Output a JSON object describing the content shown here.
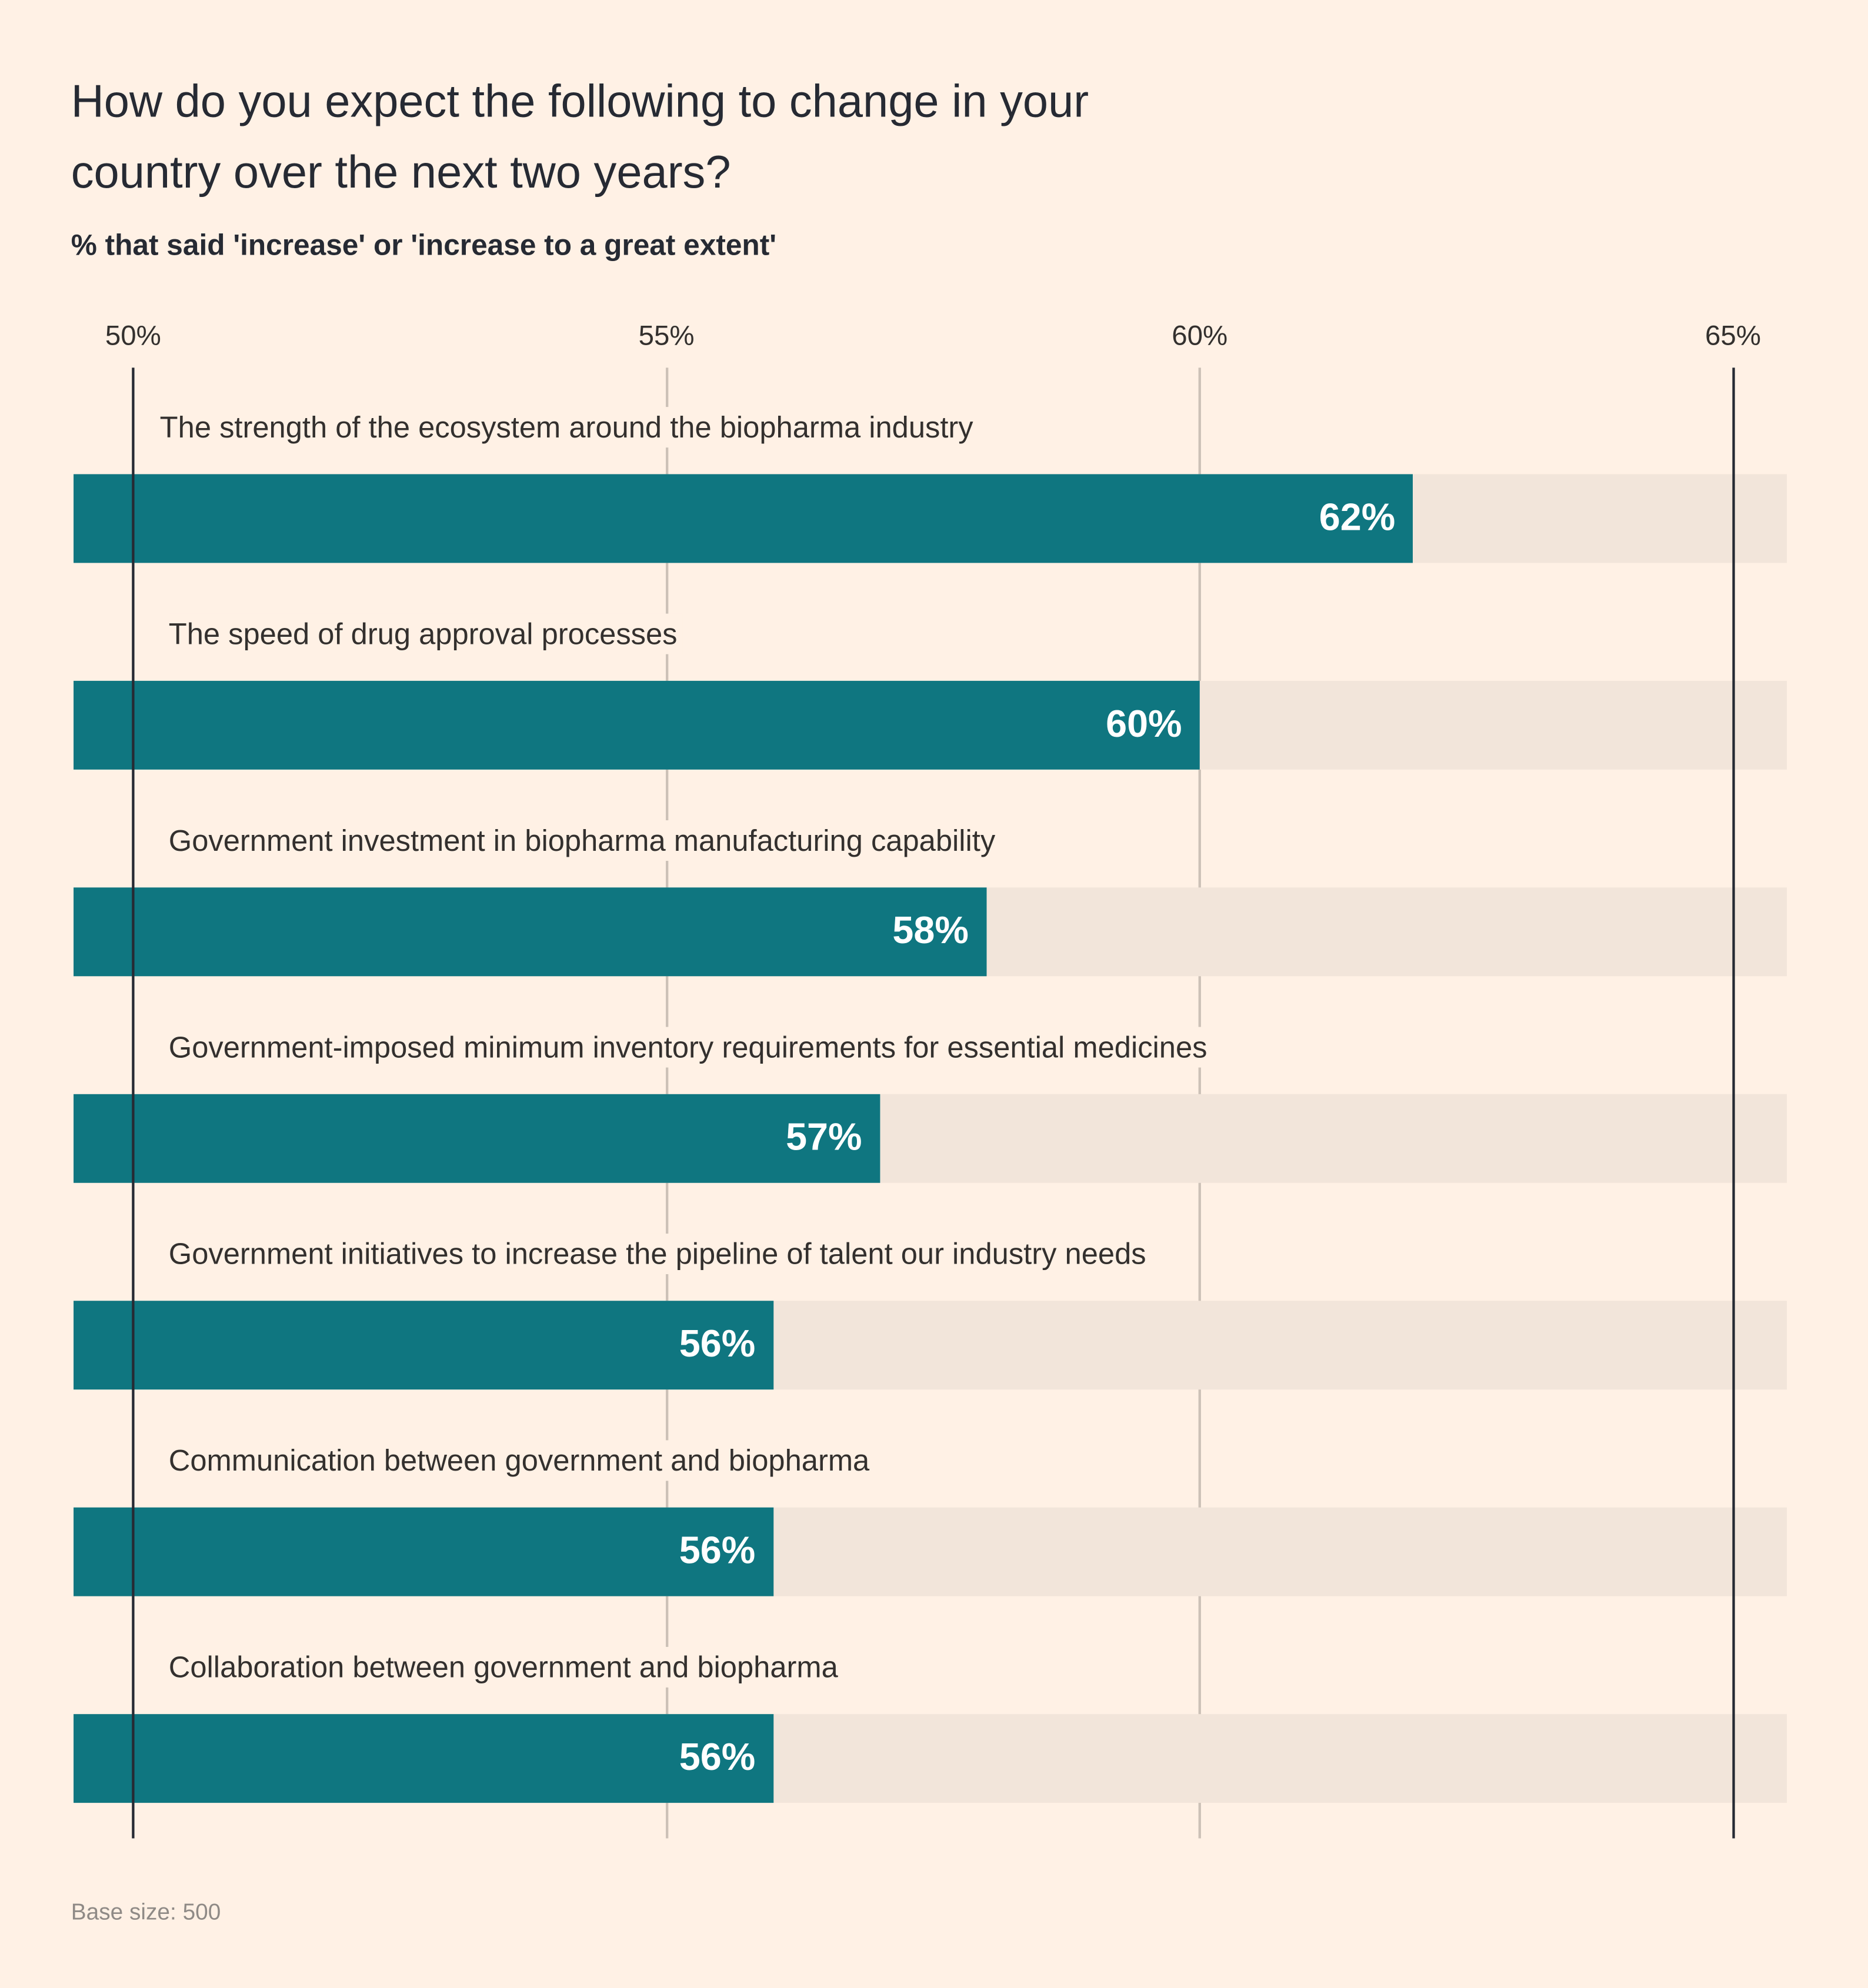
{
  "title": "How do you expect the following to change in your country over the next two years?",
  "subtitle": "% that said 'increase' or 'increase to a great extent'",
  "footnote": "Base size: 500",
  "colors": {
    "background": "#fff1e5",
    "bar": "#0f7680",
    "track": "#f2e5da",
    "axis_line": "#262a33",
    "grid_line": "#ccc1b7"
  },
  "chart_data": {
    "type": "bar",
    "orientation": "horizontal",
    "title": "How do you expect the following to change in your country over the next two years?",
    "subtitle": "% that said 'increase' or 'increase to a great extent'",
    "categories": [
      "The strength of the ecosystem around the biopharma industry",
      "The speed of drug approval processes",
      "Government investment in biopharma manufacturing capability",
      "Government-imposed minimum inventory requirements for essential medicines",
      "Government initiatives to increase the pipeline of talent our industry needs",
      "Communication between government and biopharma",
      "Collaboration between government and biopharma"
    ],
    "values": [
      62,
      60,
      58,
      57,
      56,
      56,
      56
    ],
    "value_labels": [
      "62%",
      "60%",
      "58%",
      "57%",
      "56%",
      "56%",
      "56%"
    ],
    "xlim": [
      50,
      65.5
    ],
    "xticks": [
      50,
      55,
      60,
      65
    ],
    "xtick_labels": [
      "50%",
      "55%",
      "60%",
      "65%"
    ],
    "grid": true,
    "legend": "none"
  }
}
